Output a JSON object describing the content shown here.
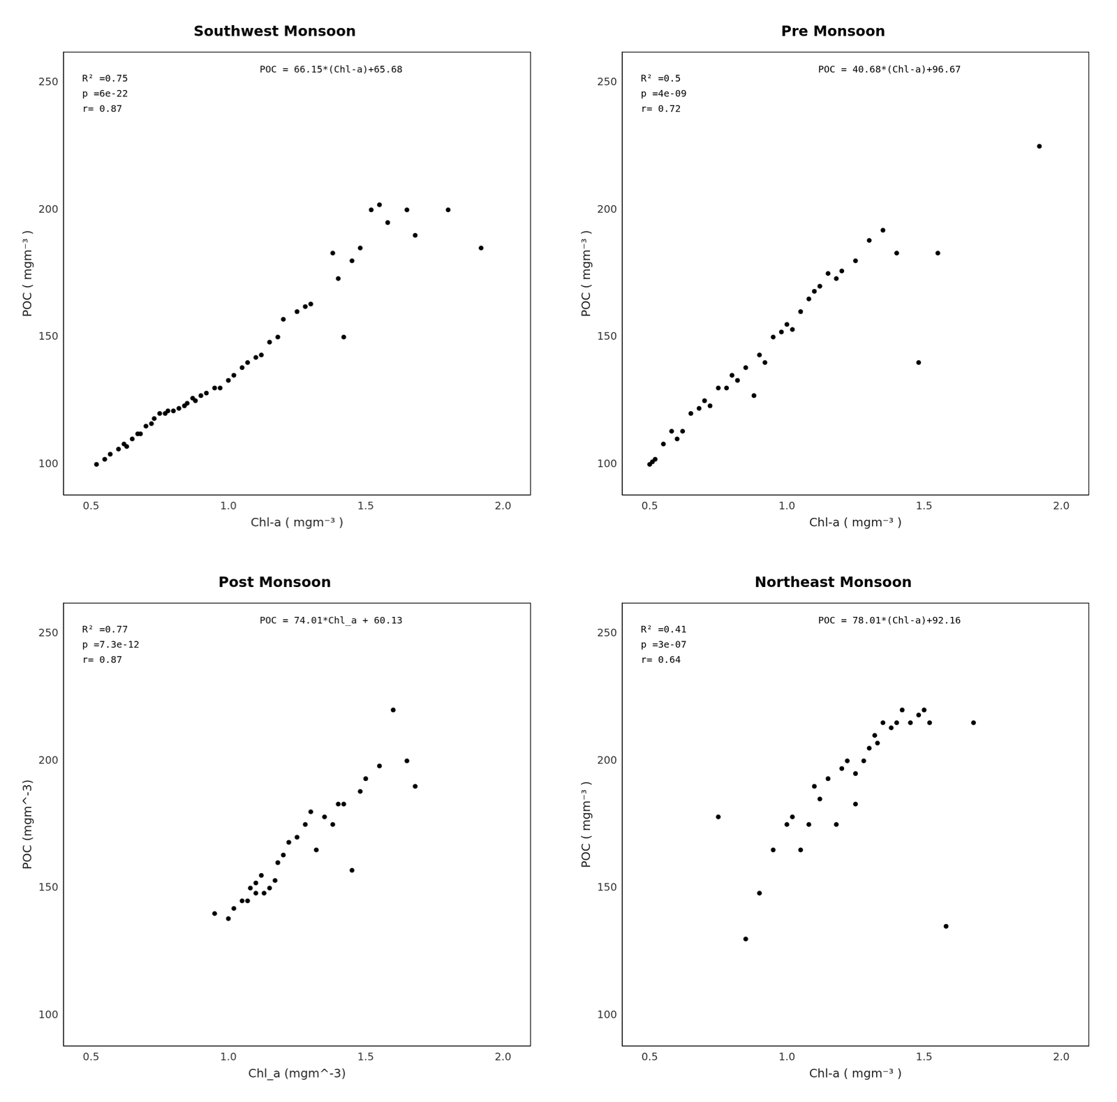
{
  "chart_data": [
    {
      "type": "scatter",
      "title": "Southwest Monsoon",
      "xlabel": "Chl-a ( mgm⁻³ )",
      "ylabel": "POC ( mgm⁻³ )",
      "annotations": [
        "R² =0.75",
        "p =6e-22",
        "r= 0.87",
        "POC = 66.15*(Chl-a)+65.68"
      ],
      "xlim": [
        0.4,
        2.1
      ],
      "ylim": [
        88,
        262
      ],
      "xticks": [
        0.5,
        {
          "value": 1.0,
          "label": "1.0"
        },
        1.5,
        {
          "value": 2.0,
          "label": "2.0"
        }
      ],
      "yticks": [
        100,
        150,
        200,
        250
      ],
      "grid": false,
      "color": "#000000",
      "x": [
        0.52,
        0.55,
        0.57,
        0.6,
        0.62,
        0.63,
        0.65,
        0.67,
        0.68,
        0.7,
        0.72,
        0.73,
        0.75,
        0.77,
        0.78,
        0.8,
        0.82,
        0.84,
        0.85,
        0.87,
        0.88,
        0.9,
        0.92,
        0.95,
        0.97,
        1.0,
        1.02,
        1.05,
        1.07,
        1.1,
        1.12,
        1.15,
        1.18,
        1.2,
        1.25,
        1.28,
        1.3,
        1.38,
        1.4,
        1.42,
        1.45,
        1.48,
        1.52,
        1.55,
        1.58,
        1.65,
        1.68,
        1.8,
        1.92
      ],
      "values": [
        100,
        102,
        104,
        106,
        108,
        107,
        110,
        112,
        112,
        115,
        116,
        118,
        120,
        120,
        121,
        121,
        122,
        123,
        124,
        126,
        125,
        127,
        128,
        130,
        130,
        133,
        135,
        138,
        140,
        142,
        143,
        148,
        150,
        157,
        160,
        162,
        163,
        183,
        173,
        150,
        180,
        185,
        200,
        202,
        195,
        200,
        190,
        200,
        185
      ]
    },
    {
      "type": "scatter",
      "title": "Pre Monsoon",
      "xlabel": "Chl-a ( mgm⁻³ )",
      "ylabel": "POC ( mgm⁻³ )",
      "annotations": [
        "R² =0.5",
        "p =4e-09",
        "r= 0.72",
        "POC = 40.68*(Chl-a)+96.67"
      ],
      "xlim": [
        0.4,
        2.1
      ],
      "ylim": [
        88,
        262
      ],
      "xticks": [
        0.5,
        {
          "value": 1.0,
          "label": "1.0"
        },
        1.5,
        {
          "value": 2.0,
          "label": "2.0"
        }
      ],
      "yticks": [
        100,
        150,
        200,
        250
      ],
      "grid": false,
      "color": "#000000",
      "x": [
        0.5,
        0.51,
        0.52,
        0.55,
        0.58,
        0.6,
        0.62,
        0.65,
        0.68,
        0.7,
        0.72,
        0.75,
        0.78,
        0.8,
        0.82,
        0.85,
        0.88,
        0.9,
        0.92,
        0.95,
        0.98,
        1.0,
        1.02,
        1.05,
        1.08,
        1.1,
        1.12,
        1.15,
        1.18,
        1.2,
        1.25,
        1.3,
        1.35,
        1.4,
        1.48,
        1.55,
        1.92
      ],
      "values": [
        100,
        101,
        102,
        108,
        113,
        110,
        113,
        120,
        122,
        125,
        123,
        130,
        130,
        135,
        133,
        138,
        127,
        143,
        140,
        150,
        152,
        155,
        153,
        160,
        165,
        168,
        170,
        175,
        173,
        176,
        180,
        188,
        192,
        183,
        140,
        183,
        225
      ]
    },
    {
      "type": "scatter",
      "title": "Post Monsoon",
      "xlabel": "Chl_a (mgm^-3)",
      "ylabel": "POC (mgm^-3)",
      "annotations": [
        "R² =0.77",
        "p =7.3e-12",
        "r= 0.87",
        "POC = 74.01*Chl_a + 60.13"
      ],
      "xlim": [
        0.4,
        2.1
      ],
      "ylim": [
        88,
        262
      ],
      "xticks": [
        0.5,
        {
          "value": 1.0,
          "label": "1.0"
        },
        1.5,
        {
          "value": 2.0,
          "label": "2.0"
        }
      ],
      "yticks": [
        100,
        150,
        200,
        250
      ],
      "grid": false,
      "color": "#000000",
      "x": [
        0.95,
        1.0,
        1.02,
        1.05,
        1.07,
        1.08,
        1.1,
        1.1,
        1.12,
        1.13,
        1.15,
        1.17,
        1.18,
        1.2,
        1.22,
        1.25,
        1.28,
        1.3,
        1.32,
        1.35,
        1.38,
        1.4,
        1.42,
        1.45,
        1.48,
        1.5,
        1.55,
        1.6,
        1.65,
        1.68
      ],
      "values": [
        140,
        138,
        142,
        145,
        145,
        150,
        152,
        148,
        155,
        148,
        150,
        153,
        160,
        163,
        168,
        170,
        175,
        180,
        165,
        178,
        175,
        183,
        183,
        157,
        188,
        193,
        198,
        220,
        200,
        190
      ]
    },
    {
      "type": "scatter",
      "title": "Northeast Monsoon",
      "xlabel": "Chl-a ( mgm⁻³ )",
      "ylabel": "POC ( mgm⁻³ )",
      "annotations": [
        "R² =0.41",
        "p =3e-07",
        "r= 0.64",
        "POC = 78.01*(Chl-a)+92.16"
      ],
      "xlim": [
        0.4,
        2.1
      ],
      "ylim": [
        88,
        262
      ],
      "xticks": [
        0.5,
        {
          "value": 1.0,
          "label": "1.0"
        },
        1.5,
        {
          "value": 2.0,
          "label": "2.0"
        }
      ],
      "yticks": [
        100,
        150,
        200,
        250
      ],
      "grid": false,
      "color": "#000000",
      "x": [
        0.75,
        0.85,
        0.9,
        0.95,
        1.0,
        1.02,
        1.05,
        1.08,
        1.1,
        1.12,
        1.15,
        1.18,
        1.2,
        1.22,
        1.25,
        1.25,
        1.28,
        1.3,
        1.32,
        1.33,
        1.35,
        1.38,
        1.4,
        1.42,
        1.45,
        1.48,
        1.5,
        1.52,
        1.58,
        1.68
      ],
      "values": [
        178,
        130,
        148,
        165,
        175,
        178,
        165,
        175,
        190,
        185,
        193,
        175,
        197,
        200,
        195,
        183,
        200,
        205,
        210,
        207,
        215,
        213,
        215,
        220,
        215,
        218,
        220,
        215,
        135,
        215
      ]
    }
  ]
}
